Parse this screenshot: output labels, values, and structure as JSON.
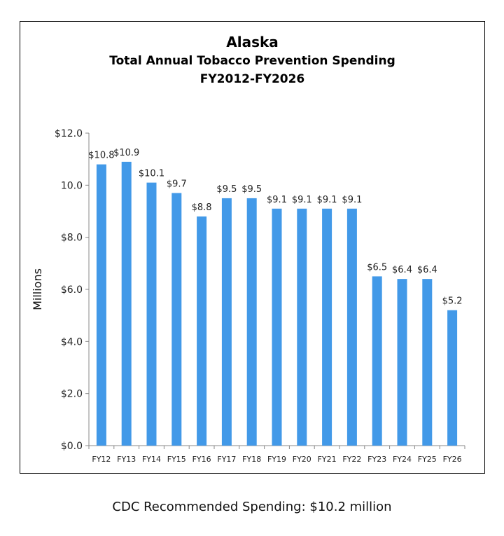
{
  "chart_data": {
    "type": "bar",
    "title": "Alaska",
    "subtitle": [
      "Total Annual Tobacco Prevention Spending",
      "FY2012-FY2026"
    ],
    "ylabel": "Millions",
    "xlabel": "",
    "categories": [
      "FY12",
      "FY13",
      "FY14",
      "FY15",
      "FY16",
      "FY17",
      "FY18",
      "FY19",
      "FY20",
      "FY21",
      "FY22",
      "FY23",
      "FY24",
      "FY25",
      "FY26"
    ],
    "values": [
      10.8,
      10.9,
      10.1,
      9.7,
      8.8,
      9.5,
      9.5,
      9.1,
      9.1,
      9.1,
      9.1,
      6.5,
      6.4,
      6.4,
      5.2
    ],
    "data_labels": [
      "$10.8",
      "$10.9",
      "$10.1",
      "$9.7",
      "$8.8",
      "$9.5",
      "$9.5",
      "$9.1",
      "$9.1",
      "$9.1",
      "$9.1",
      "$6.5",
      "$6.4",
      "$6.4",
      "$5.2"
    ],
    "ylim": [
      0,
      12
    ],
    "yticks": [
      0,
      2,
      4,
      6,
      8,
      10,
      12
    ],
    "ytick_labels": [
      "$0.0",
      "$2.0",
      "$4.0",
      "$6.0",
      "$8.0",
      "10.0",
      "$12.0"
    ],
    "grid": false,
    "bar_color": "#4299E8"
  },
  "footer": "CDC Recommended Spending: $10.2 million"
}
